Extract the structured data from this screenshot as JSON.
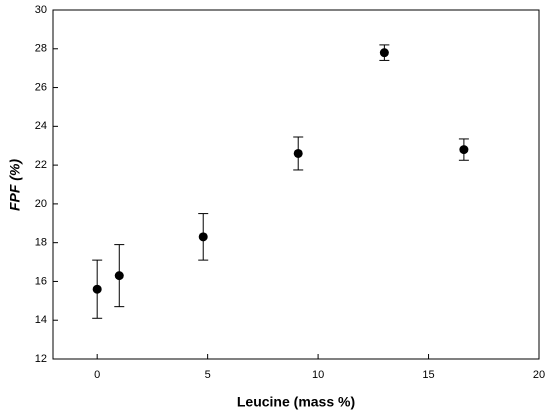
{
  "chart_data": {
    "type": "scatter",
    "xlabel": "Leucine (mass %)",
    "ylabel": "FPF (%)",
    "x": [
      0,
      1,
      4.8,
      9.1,
      13,
      16.6
    ],
    "values": [
      15.6,
      16.3,
      18.3,
      22.6,
      27.8,
      22.8
    ],
    "errors": [
      1.5,
      1.6,
      1.2,
      0.85,
      0.4,
      0.55
    ],
    "color": "#000000",
    "xlim": [
      -2,
      20
    ],
    "xticks": [
      0,
      5,
      10,
      15,
      20
    ],
    "ylim": [
      12,
      30
    ],
    "yticks": [
      12,
      14,
      16,
      18,
      20,
      22,
      24,
      26,
      28,
      30
    ]
  }
}
